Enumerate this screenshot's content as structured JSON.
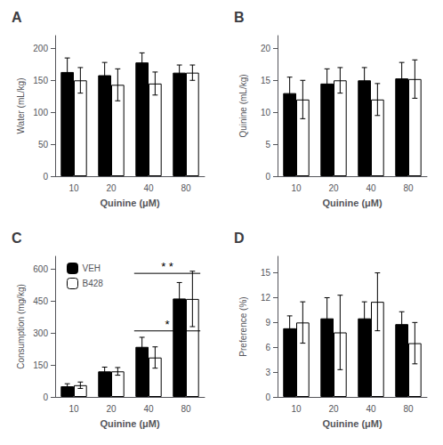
{
  "chart_data": [
    {
      "type": "bar",
      "title": "A",
      "xlabel": "Quinine (μM)",
      "ylabel": "Water (mL/kg)",
      "categories": [
        10,
        20,
        40,
        80
      ],
      "series": [
        {
          "name": "VEH",
          "color": "#000000",
          "values": [
            163,
            158,
            178,
            162
          ],
          "errors": [
            22,
            20,
            15,
            12
          ]
        },
        {
          "name": "B428",
          "color": "#ffffff",
          "values": [
            150,
            143,
            145,
            162
          ],
          "errors": [
            20,
            25,
            18,
            12
          ]
        }
      ],
      "ylim": [
        0,
        220
      ],
      "yticks": [
        0,
        50,
        100,
        150,
        200
      ],
      "grid": false
    },
    {
      "type": "bar",
      "title": "B",
      "xlabel": "Quinine (μM)",
      "ylabel": "Quinine (mL/kg)",
      "categories": [
        10,
        20,
        40,
        80
      ],
      "series": [
        {
          "name": "VEH",
          "color": "#000000",
          "values": [
            13.0,
            14.5,
            15.0,
            15.3
          ],
          "errors": [
            2.5,
            2.3,
            2.0,
            2.5
          ]
        },
        {
          "name": "B428",
          "color": "#ffffff",
          "values": [
            12.0,
            15.0,
            12.0,
            15.2
          ],
          "errors": [
            3.0,
            2.0,
            2.5,
            3.0
          ]
        }
      ],
      "ylim": [
        0,
        22
      ],
      "yticks": [
        0,
        5,
        10,
        15,
        20
      ],
      "grid": false
    },
    {
      "type": "bar",
      "title": "C",
      "xlabel": "Quinine (μM)",
      "ylabel": "Consumption (mg/kg)",
      "categories": [
        10,
        20,
        40,
        80
      ],
      "series": [
        {
          "name": "VEH",
          "color": "#000000",
          "values": [
            50,
            120,
            235,
            462
          ],
          "errors": [
            12,
            20,
            45,
            75
          ]
        },
        {
          "name": "B428",
          "color": "#ffffff",
          "values": [
            55,
            120,
            185,
            460
          ],
          "errors": [
            15,
            18,
            50,
            130
          ]
        }
      ],
      "ylim": [
        0,
        660
      ],
      "yticks": [
        0,
        150,
        300,
        450,
        600
      ],
      "grid": false,
      "legend": "upper left",
      "annotations": [
        {
          "text": "*",
          "x": [
            40,
            80
          ],
          "y": 310
        },
        {
          "text": "* *",
          "x": [
            40,
            80
          ],
          "y": 580
        }
      ]
    },
    {
      "type": "bar",
      "title": "D",
      "xlabel": "Quinine (μM)",
      "ylabel": "Preference (%)",
      "categories": [
        10,
        20,
        40,
        80
      ],
      "series": [
        {
          "name": "VEH",
          "color": "#000000",
          "values": [
            8.3,
            9.5,
            9.5,
            8.8
          ],
          "errors": [
            1.5,
            2.5,
            2.0,
            1.5
          ]
        },
        {
          "name": "B428",
          "color": "#ffffff",
          "values": [
            9.0,
            7.8,
            11.5,
            6.5
          ],
          "errors": [
            2.5,
            4.5,
            3.5,
            2.5
          ]
        }
      ],
      "ylim": [
        0,
        17
      ],
      "yticks": [
        0,
        3,
        6,
        9,
        12,
        15
      ],
      "grid": false
    }
  ]
}
